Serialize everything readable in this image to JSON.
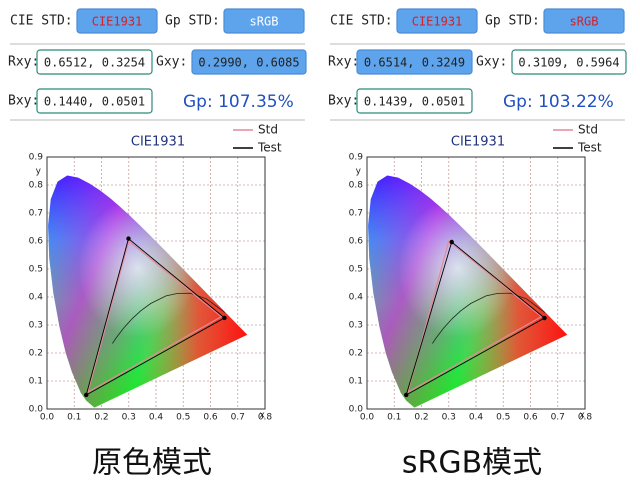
{
  "panels": [
    {
      "cie_std_label": "CIE STD:",
      "cie_std": "CIE1931",
      "gp_std_label": "Gp STD:",
      "gp_std": "sRGB",
      "rxy_label": "Rxy:",
      "rxy": "0.6512, 0.3254",
      "gxy_label": "Gxy:",
      "gxy": "0.2990, 0.6085",
      "bxy_label": "Bxy:",
      "bxy": "0.1440, 0.0501",
      "gp": "Gp: 107.35%",
      "caption": "原色模式"
    },
    {
      "cie_std_label": "CIE STD:",
      "cie_std": "CIE1931",
      "gp_std_label": "Gp STD:",
      "gp_std": "sRGB",
      "rxy_label": "Rxy:",
      "rxy": "0.6514, 0.3249",
      "gxy_label": "Gxy:",
      "gxy": "0.3109, 0.5964",
      "bxy_label": "Bxy:",
      "bxy": "0.1439, 0.0501",
      "gp": "Gp: 103.22%",
      "caption": "sRGB模式"
    }
  ],
  "chart_data": [
    {
      "type": "gamut",
      "title": "CIE1931",
      "xlabel": "x",
      "ylabel": "y",
      "xlim": [
        0,
        0.8
      ],
      "ylim": [
        0,
        0.9
      ],
      "xticks": [
        {
          "value": 0,
          "label": "0.0"
        },
        0.1,
        0.2,
        0.3,
        0.4,
        0.5,
        0.6,
        0.7,
        0.8
      ],
      "yticks": [
        {
          "value": 0,
          "label": "0.0"
        },
        0.1,
        0.2,
        0.3,
        0.4,
        0.5,
        0.6,
        0.7,
        0.8,
        0.9
      ],
      "grid": true,
      "legend": "upper right",
      "series": [
        {
          "name": "Std",
          "color": "#e48a98",
          "x": [
            0.64,
            0.3,
            0.15
          ],
          "values": [
            0.33,
            0.6,
            0.06
          ]
        },
        {
          "name": "Test",
          "color": "#000000",
          "x": [
            0.6512,
            0.299,
            0.144
          ],
          "values": [
            0.3254,
            0.6085,
            0.0501
          ]
        }
      ]
    },
    {
      "type": "gamut",
      "title": "CIE1931",
      "xlabel": "x",
      "ylabel": "y",
      "xlim": [
        0,
        0.8
      ],
      "ylim": [
        0,
        0.9
      ],
      "xticks": [
        {
          "value": 0,
          "label": "0.0"
        },
        0.1,
        0.2,
        0.3,
        0.4,
        0.5,
        0.6,
        0.7,
        0.8
      ],
      "yticks": [
        {
          "value": 0,
          "label": "0.0"
        },
        0.1,
        0.2,
        0.3,
        0.4,
        0.5,
        0.6,
        0.7,
        0.8,
        0.9
      ],
      "grid": true,
      "legend": "upper right",
      "series": [
        {
          "name": "Std",
          "color": "#e48a98",
          "x": [
            0.64,
            0.3,
            0.15
          ],
          "values": [
            0.33,
            0.6,
            0.06
          ]
        },
        {
          "name": "Test",
          "color": "#000000",
          "x": [
            0.6514,
            0.3109,
            0.1439
          ],
          "values": [
            0.3249,
            0.5964,
            0.0501
          ]
        }
      ]
    }
  ]
}
